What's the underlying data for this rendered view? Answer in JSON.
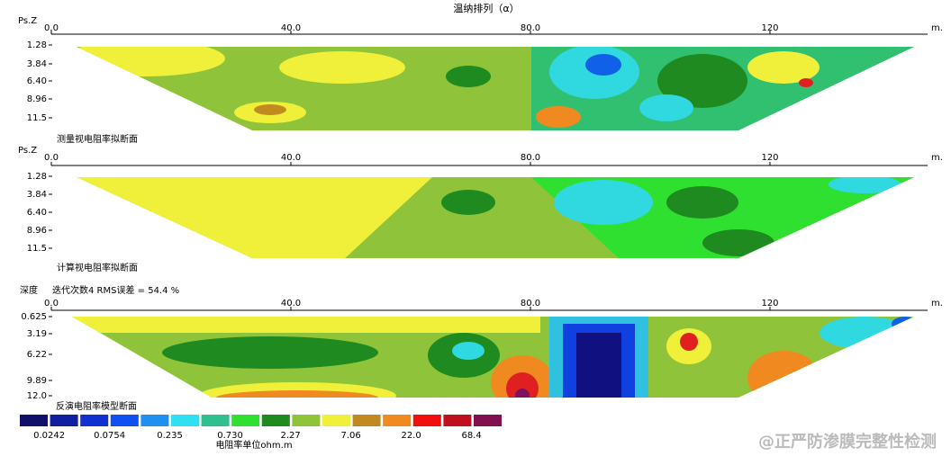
{
  "title": "温纳排列（α）",
  "x_unit": "m.",
  "panels": [
    {
      "y_label": "Ps.Z",
      "x_ticks": [
        "0.0",
        "40.0",
        "80.0",
        "120"
      ],
      "y_ticks": [
        "1.28",
        "3.84",
        "6.40",
        "8.96",
        "11.5"
      ],
      "caption": "测量视电阻率拟断面"
    },
    {
      "y_label": "Ps.Z",
      "x_ticks": [
        "0.0",
        "40.0",
        "80.0",
        "120"
      ],
      "y_ticks": [
        "1.28",
        "3.84",
        "6.40",
        "8.96",
        "11.5"
      ],
      "caption": "计算视电阻率拟断面"
    },
    {
      "y_label": "深度",
      "header": "迭代次数4 RMS误差 = 54.4 %",
      "x_ticks": [
        "0.0",
        "40.0",
        "80.0",
        "120"
      ],
      "y_ticks": [
        "0.625",
        "3.19",
        "6.22",
        "9.89",
        "12.0"
      ],
      "caption": "反演电阻率模型断面"
    }
  ],
  "legend": {
    "labels": [
      "0.0242",
      "0.0754",
      "0.235",
      "0.730",
      "2.27",
      "7.06",
      "22.0",
      "68.4"
    ],
    "unit": "电阻率单位ohm.m"
  },
  "watermark": "@正严防渗膜完整性检测"
}
